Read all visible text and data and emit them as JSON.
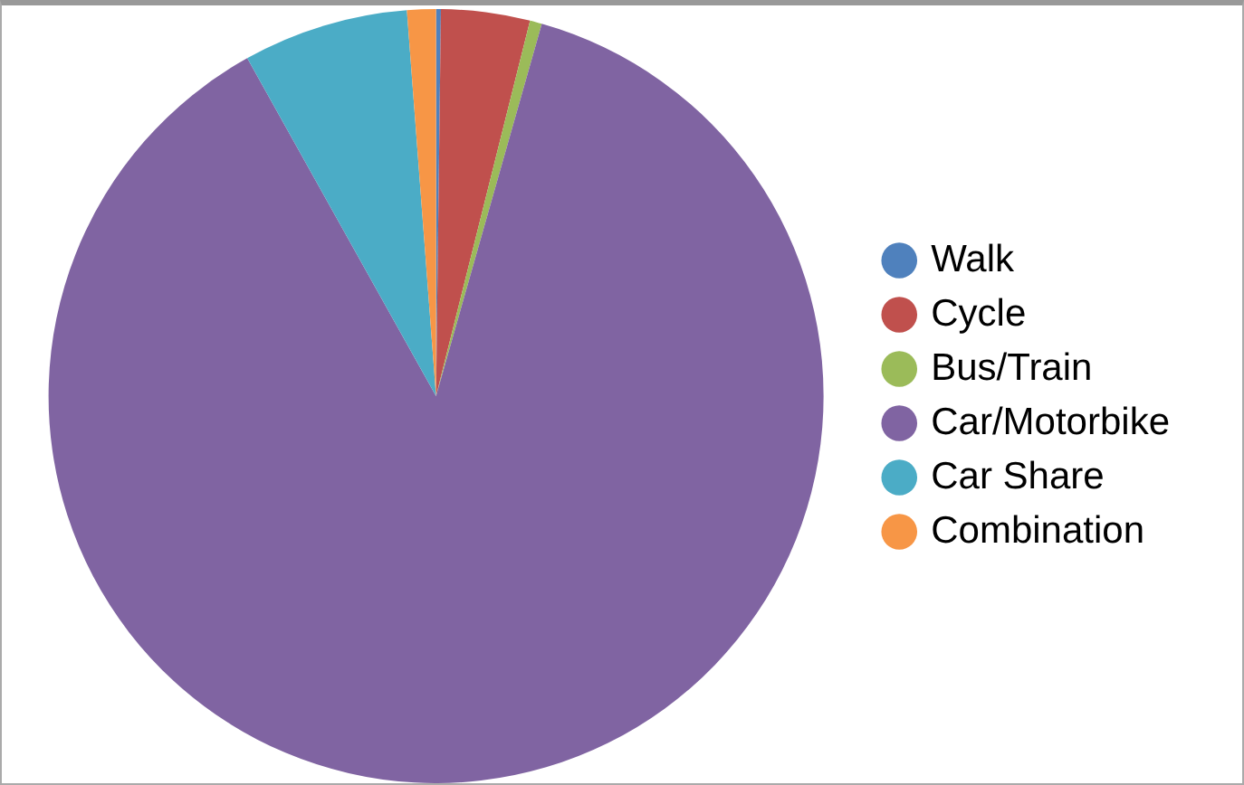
{
  "chart_data": {
    "type": "pie",
    "categories": [
      "Walk",
      "Cycle",
      "Bus/Train",
      "Car/Motorbike",
      "Car Share",
      "Combination"
    ],
    "values": [
      0.2,
      3.7,
      0.5,
      87.5,
      6.9,
      1.2
    ],
    "colors": [
      "#4f81bd",
      "#c0504d",
      "#9bbb59",
      "#8064a2",
      "#4bacc6",
      "#f79646"
    ],
    "legend": "right"
  }
}
